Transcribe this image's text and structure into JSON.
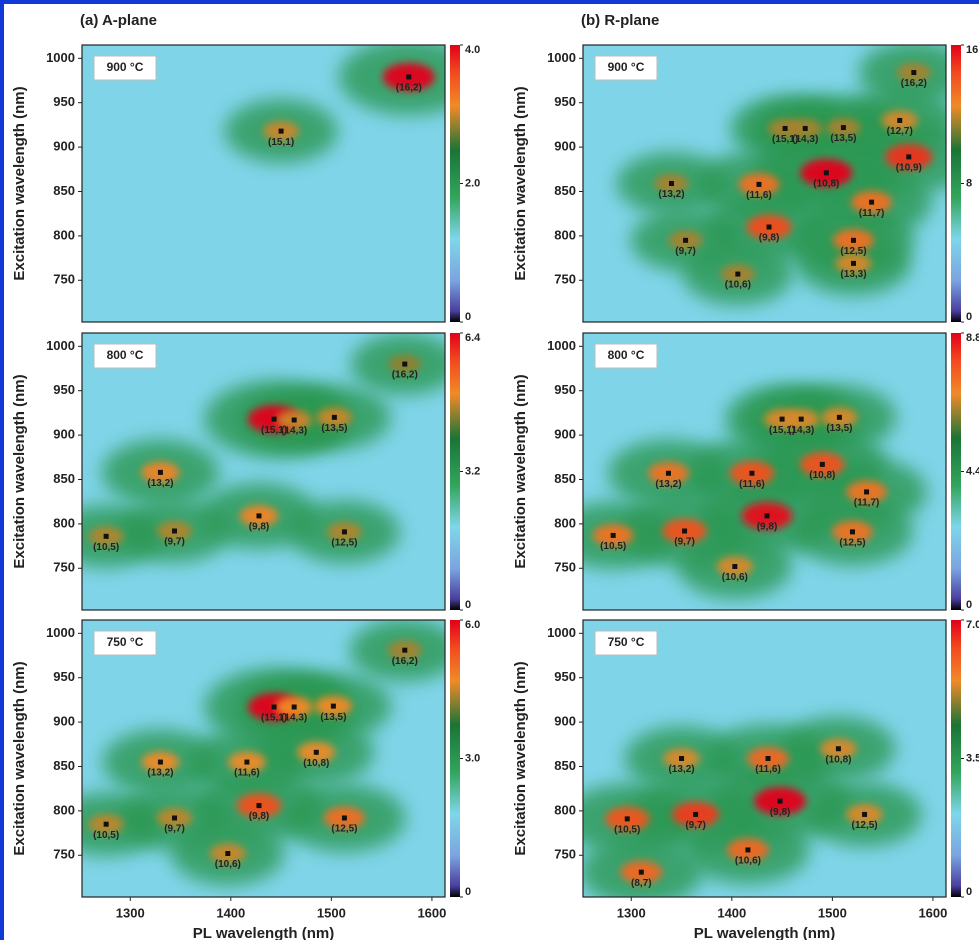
{
  "chart_data": [
    {
      "type": "heatmap",
      "title": "(a) A-plane",
      "annotation": "900 °C",
      "ylabel": "Excitation wavelength (nm)",
      "xlim": [
        1252,
        1613
      ],
      "ylim": [
        703,
        1015
      ],
      "yticks": [
        750,
        800,
        850,
        900,
        950,
        1000
      ],
      "zlim": [
        0,
        4
      ],
      "zticks": [
        0,
        {
          "value": 2,
          "label": "2.0"
        },
        {
          "value": 4,
          "label": "4.0"
        }
      ],
      "peaks": [
        {
          "label": "(16,2)",
          "x": 1577,
          "y": 979,
          "z": 4.0
        },
        {
          "label": "(15,1)",
          "x": 1450,
          "y": 918,
          "z": 2.2
        }
      ]
    },
    {
      "type": "heatmap",
      "title": "(b) R-plane",
      "annotation": "900 °C",
      "ylabel": "Excitation wavelength (nm)",
      "xlim": [
        1252,
        1613
      ],
      "ylim": [
        703,
        1015
      ],
      "yticks": [
        750,
        800,
        850,
        900,
        950,
        1000
      ],
      "zlim": [
        0,
        16
      ],
      "zticks": [
        0,
        8,
        16
      ],
      "peaks": [
        {
          "label": "(16,2)",
          "x": 1581,
          "y": 984,
          "z": 8
        },
        {
          "label": "(15,1)",
          "x": 1453,
          "y": 921,
          "z": 8
        },
        {
          "label": "(14,3)",
          "x": 1473,
          "y": 921,
          "z": 8
        },
        {
          "label": "(13,5)",
          "x": 1511,
          "y": 922,
          "z": 8
        },
        {
          "label": "(12,7)",
          "x": 1567,
          "y": 930,
          "z": 9
        },
        {
          "label": "(10,9)",
          "x": 1576,
          "y": 889,
          "z": 14
        },
        {
          "label": "(10,8)",
          "x": 1494,
          "y": 871,
          "z": 16
        },
        {
          "label": "(13,2)",
          "x": 1340,
          "y": 859,
          "z": 8
        },
        {
          "label": "(11,6)",
          "x": 1427,
          "y": 858,
          "z": 11
        },
        {
          "label": "(11,7)",
          "x": 1539,
          "y": 838,
          "z": 11
        },
        {
          "label": "(9,8)",
          "x": 1437,
          "y": 810,
          "z": 13
        },
        {
          "label": "(12,5)",
          "x": 1521,
          "y": 795,
          "z": 11
        },
        {
          "label": "(9,7)",
          "x": 1354,
          "y": 795,
          "z": 8
        },
        {
          "label": "(13,3)",
          "x": 1521,
          "y": 769,
          "z": 9
        },
        {
          "label": "(10,6)",
          "x": 1406,
          "y": 757,
          "z": 8
        }
      ]
    },
    {
      "type": "heatmap",
      "annotation": "800 °C",
      "ylabel": "Excitation wavelength (nm)",
      "xlim": [
        1252,
        1613
      ],
      "ylim": [
        703,
        1015
      ],
      "yticks": [
        750,
        800,
        850,
        900,
        950,
        1000
      ],
      "zlim": [
        0,
        6.4
      ],
      "zticks": [
        0,
        {
          "value": 3.2,
          "label": "3.2"
        },
        {
          "value": 6.4,
          "label": "6.4"
        }
      ],
      "peaks": [
        {
          "label": "(16,2)",
          "x": 1573,
          "y": 980,
          "z": 3.0
        },
        {
          "label": "(15,1)",
          "x": 1443,
          "y": 918,
          "z": 6.4
        },
        {
          "label": "(14,3)",
          "x": 1463,
          "y": 917,
          "z": 3.5
        },
        {
          "label": "(13,5)",
          "x": 1503,
          "y": 920,
          "z": 3.5
        },
        {
          "label": "(13,2)",
          "x": 1330,
          "y": 858,
          "z": 4.0
        },
        {
          "label": "(9,8)",
          "x": 1428,
          "y": 809,
          "z": 4.0
        },
        {
          "label": "(10,5)",
          "x": 1276,
          "y": 786,
          "z": 3.3
        },
        {
          "label": "(9,7)",
          "x": 1344,
          "y": 792,
          "z": 3.3
        },
        {
          "label": "(12,5)",
          "x": 1513,
          "y": 791,
          "z": 3.3
        }
      ]
    },
    {
      "type": "heatmap",
      "annotation": "800 °C",
      "ylabel": "Excitation wavelength (nm)",
      "xlim": [
        1252,
        1613
      ],
      "ylim": [
        703,
        1015
      ],
      "yticks": [
        750,
        800,
        850,
        900,
        950,
        1000
      ],
      "zlim": [
        0,
        8.8
      ],
      "zticks": [
        0,
        {
          "value": 4.4,
          "label": "4.4"
        },
        {
          "value": 8.8,
          "label": "8.8"
        }
      ],
      "peaks": [
        {
          "label": "(15,1)",
          "x": 1450,
          "y": 918,
          "z": 5
        },
        {
          "label": "(14,3)",
          "x": 1469,
          "y": 918,
          "z": 5
        },
        {
          "label": "(13,5)",
          "x": 1507,
          "y": 920,
          "z": 5
        },
        {
          "label": "(13,2)",
          "x": 1337,
          "y": 857,
          "z": 6
        },
        {
          "label": "(11,6)",
          "x": 1420,
          "y": 857,
          "z": 7
        },
        {
          "label": "(10,8)",
          "x": 1490,
          "y": 867,
          "z": 7
        },
        {
          "label": "(11,7)",
          "x": 1534,
          "y": 836,
          "z": 6
        },
        {
          "label": "(9,8)",
          "x": 1435,
          "y": 809,
          "z": 8.5
        },
        {
          "label": "(10,5)",
          "x": 1282,
          "y": 787,
          "z": 6
        },
        {
          "label": "(9,7)",
          "x": 1353,
          "y": 792,
          "z": 7
        },
        {
          "label": "(12,5)",
          "x": 1520,
          "y": 791,
          "z": 6
        },
        {
          "label": "(10,6)",
          "x": 1403,
          "y": 752,
          "z": 5
        }
      ]
    },
    {
      "type": "heatmap",
      "annotation": "750 °C",
      "ylabel": "Excitation wavelength (nm)",
      "xlabel": "PL wavelength (nm)",
      "xlim": [
        1252,
        1613
      ],
      "xticks": [
        1300,
        1400,
        1500,
        1600
      ],
      "ylim": [
        703,
        1015
      ],
      "yticks": [
        750,
        800,
        850,
        900,
        950,
        1000
      ],
      "zlim": [
        0,
        6
      ],
      "zticks": [
        0,
        {
          "value": 3,
          "label": "3.0"
        },
        {
          "value": 6,
          "label": "6.0"
        }
      ],
      "peaks": [
        {
          "label": "(16,2)",
          "x": 1573,
          "y": 981,
          "z": 3.0
        },
        {
          "label": "(15,1)",
          "x": 1443,
          "y": 917,
          "z": 6.0
        },
        {
          "label": "(14,3)",
          "x": 1463,
          "y": 917,
          "z": 3.6
        },
        {
          "label": "(13,5)",
          "x": 1502,
          "y": 918,
          "z": 3.6
        },
        {
          "label": "(13,2)",
          "x": 1330,
          "y": 855,
          "z": 3.6
        },
        {
          "label": "(11,6)",
          "x": 1416,
          "y": 855,
          "z": 3.6
        },
        {
          "label": "(10,8)",
          "x": 1485,
          "y": 866,
          "z": 3.6
        },
        {
          "label": "(9,8)",
          "x": 1428,
          "y": 806,
          "z": 4.8
        },
        {
          "label": "(10,5)",
          "x": 1276,
          "y": 785,
          "z": 3.2
        },
        {
          "label": "(9,7)",
          "x": 1344,
          "y": 792,
          "z": 3.2
        },
        {
          "label": "(12,5)",
          "x": 1513,
          "y": 792,
          "z": 4.2
        },
        {
          "label": "(10,6)",
          "x": 1397,
          "y": 752,
          "z": 3.3
        }
      ]
    },
    {
      "type": "heatmap",
      "annotation": "750 °C",
      "ylabel": "Excitation wavelength (nm)",
      "xlabel": "PL wavelength (nm)",
      "xlim": [
        1252,
        1613
      ],
      "xticks": [
        1300,
        1400,
        1500,
        1600
      ],
      "ylim": [
        703,
        1015
      ],
      "yticks": [
        750,
        800,
        850,
        900,
        950,
        1000
      ],
      "zlim": [
        0,
        7
      ],
      "zticks": [
        0,
        {
          "value": 3.5,
          "label": "3.5"
        },
        {
          "value": 7,
          "label": "7.0"
        }
      ],
      "peaks": [
        {
          "label": "(13,2)",
          "x": 1350,
          "y": 859,
          "z": 4
        },
        {
          "label": "(11,6)",
          "x": 1436,
          "y": 859,
          "z": 5
        },
        {
          "label": "(10,8)",
          "x": 1506,
          "y": 870,
          "z": 4
        },
        {
          "label": "(9,8)",
          "x": 1448,
          "y": 811,
          "z": 7
        },
        {
          "label": "(10,5)",
          "x": 1296,
          "y": 791,
          "z": 5.5
        },
        {
          "label": "(9,7)",
          "x": 1364,
          "y": 796,
          "z": 6
        },
        {
          "label": "(12,5)",
          "x": 1532,
          "y": 796,
          "z": 4
        },
        {
          "label": "(10,6)",
          "x": 1416,
          "y": 756,
          "z": 5
        },
        {
          "label": "(8,7)",
          "x": 1310,
          "y": 731,
          "z": 5
        }
      ]
    }
  ]
}
